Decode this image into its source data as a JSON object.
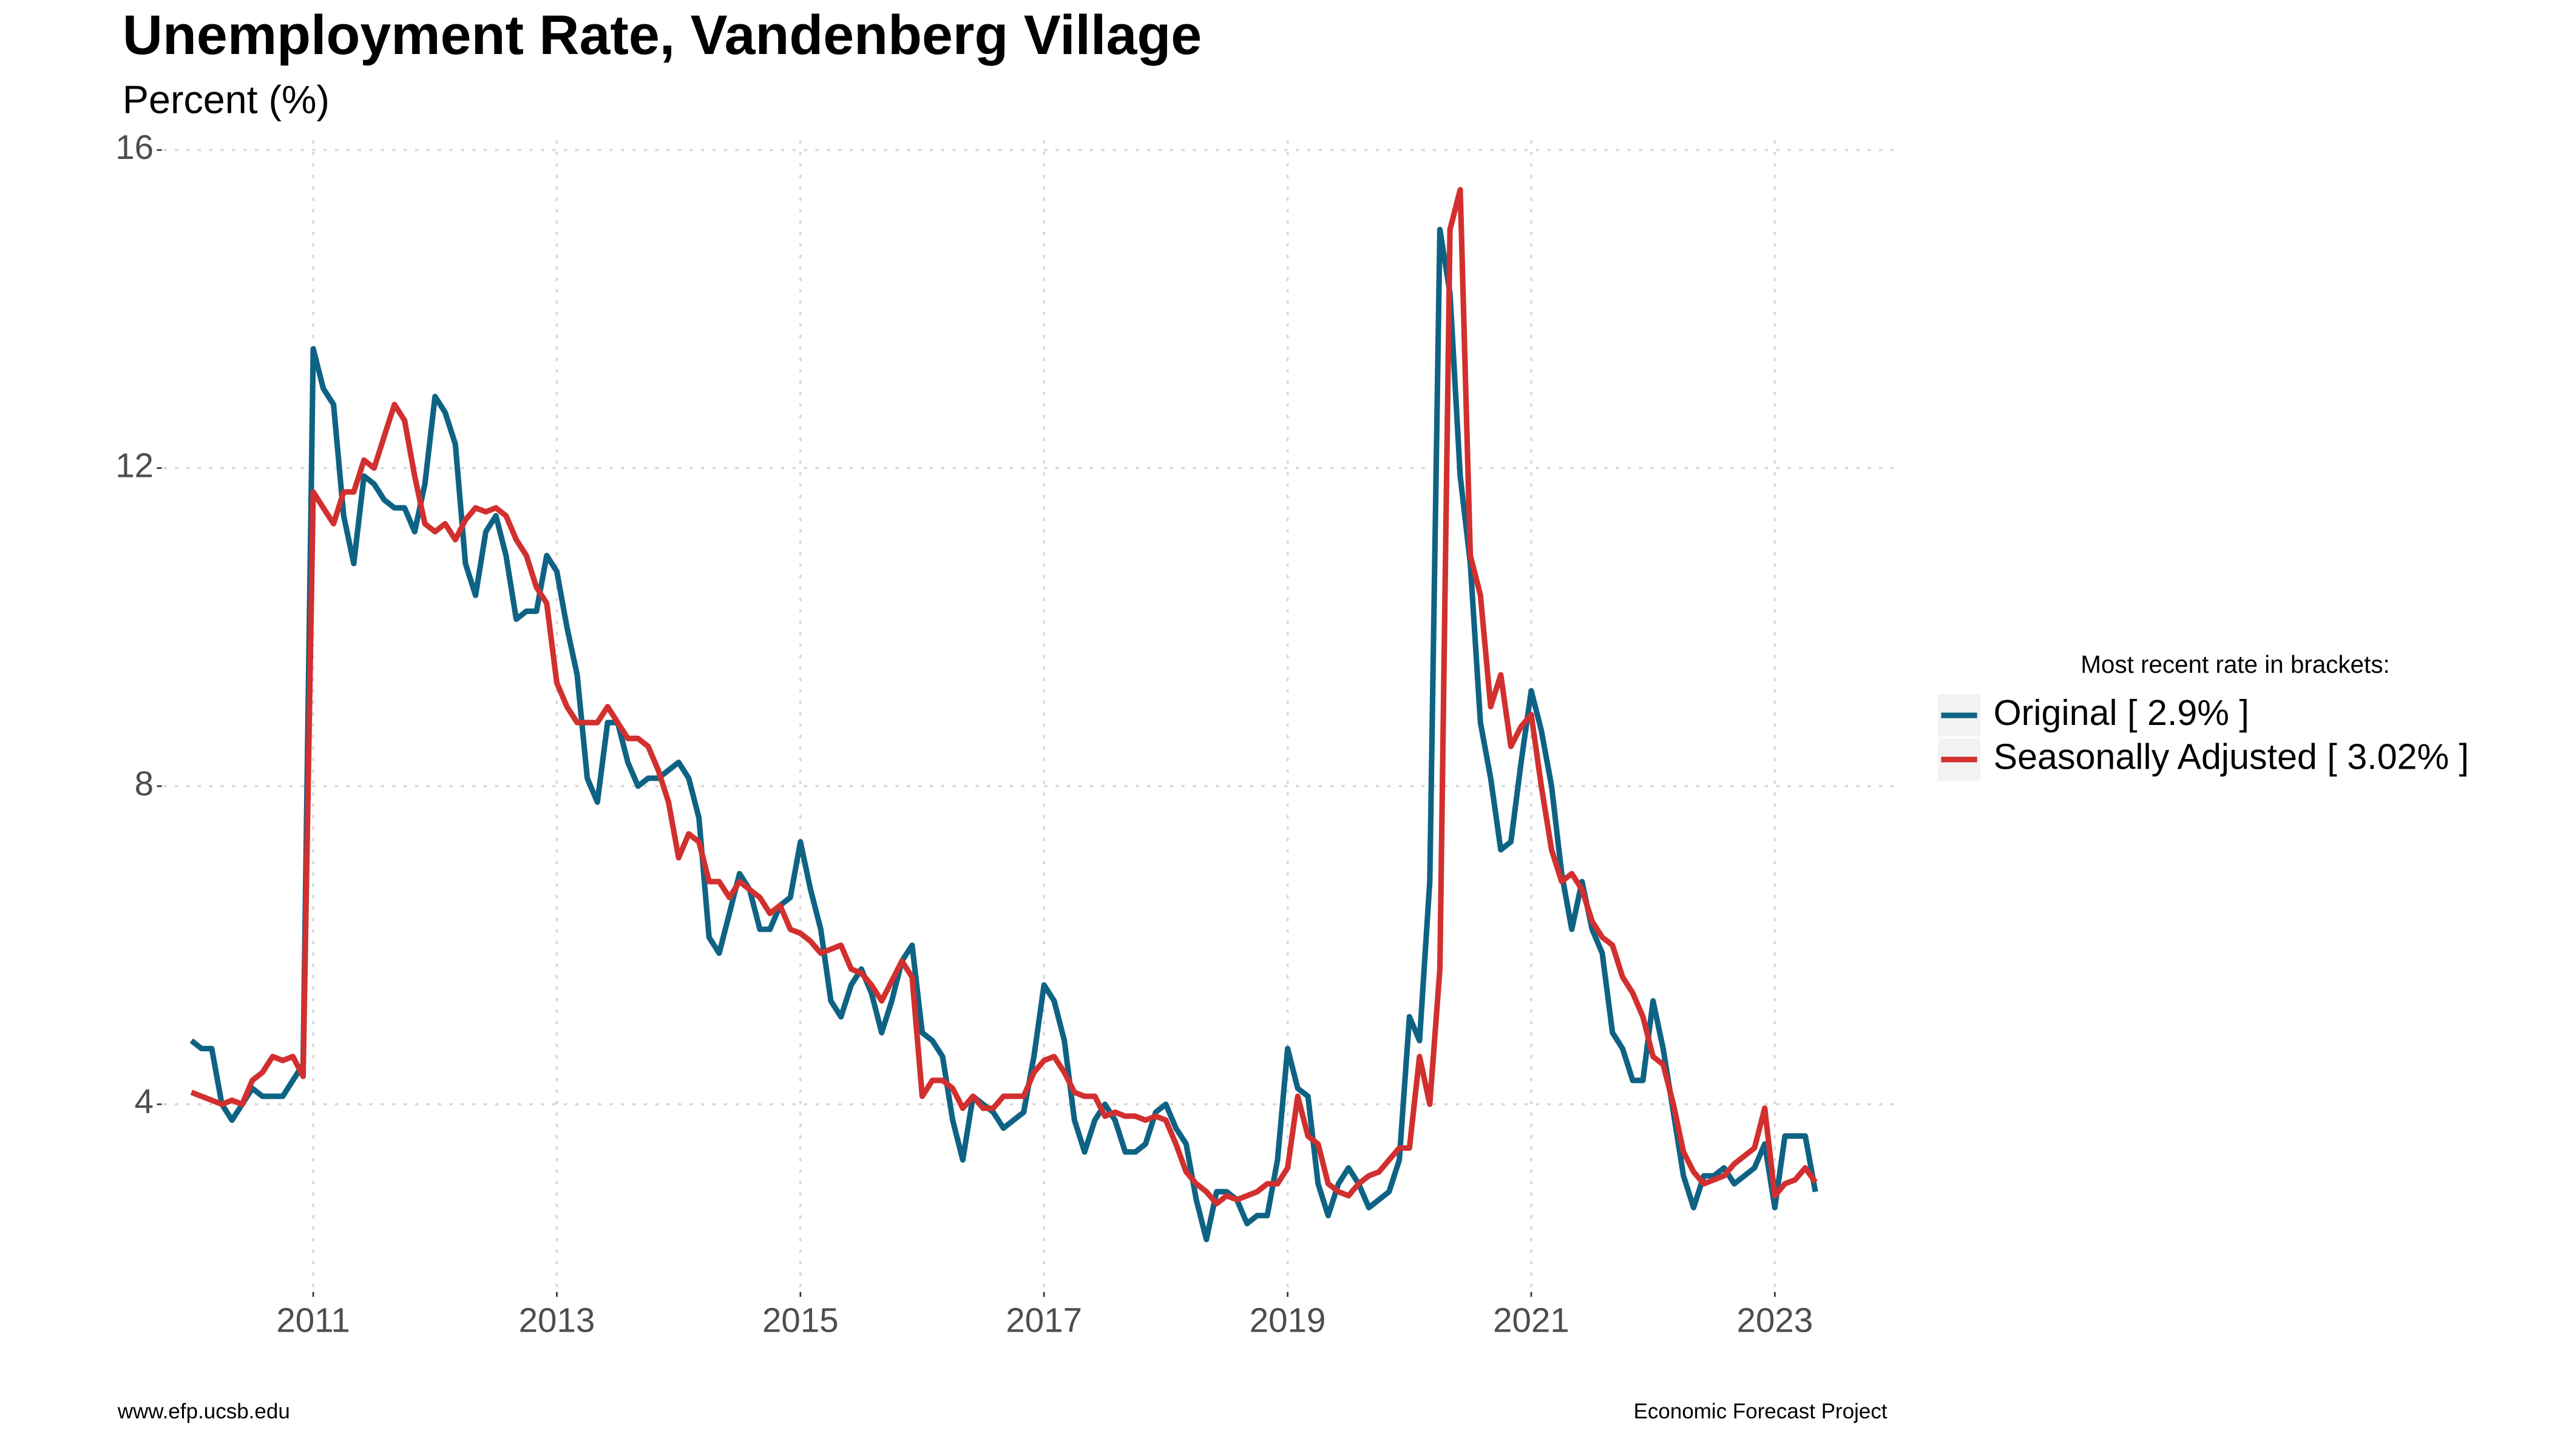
{
  "chart_data": {
    "type": "line",
    "title": "Unemployment Rate, Vandenberg Village",
    "subtitle": "Percent (%)",
    "legend_title": "Most recent rate in brackets:",
    "legend_position": "right",
    "source_left": "www.efp.ucsb.edu",
    "source_right": "Economic Forecast Project",
    "grid": true,
    "xlim": [
      2009.77,
      2023.99
    ],
    "ylim": [
      1.66,
      16.12
    ],
    "xticks": [
      2011,
      2013,
      2015,
      2017,
      2019,
      2021,
      2023
    ],
    "yticks": [
      4,
      8,
      12,
      16
    ],
    "x": [
      2010.0,
      2010.083,
      2010.167,
      2010.25,
      2010.333,
      2010.417,
      2010.5,
      2010.583,
      2010.667,
      2010.75,
      2010.833,
      2010.917,
      2011.0,
      2011.083,
      2011.167,
      2011.25,
      2011.333,
      2011.417,
      2011.5,
      2011.583,
      2011.667,
      2011.75,
      2011.833,
      2011.917,
      2012.0,
      2012.083,
      2012.167,
      2012.25,
      2012.333,
      2012.417,
      2012.5,
      2012.583,
      2012.667,
      2012.75,
      2012.833,
      2012.917,
      2013.0,
      2013.083,
      2013.167,
      2013.25,
      2013.333,
      2013.417,
      2013.5,
      2013.583,
      2013.667,
      2013.75,
      2013.833,
      2013.917,
      2014.0,
      2014.083,
      2014.167,
      2014.25,
      2014.333,
      2014.417,
      2014.5,
      2014.583,
      2014.667,
      2014.75,
      2014.833,
      2014.917,
      2015.0,
      2015.083,
      2015.167,
      2015.25,
      2015.333,
      2015.417,
      2015.5,
      2015.583,
      2015.667,
      2015.75,
      2015.833,
      2015.917,
      2016.0,
      2016.083,
      2016.167,
      2016.25,
      2016.333,
      2016.417,
      2016.5,
      2016.583,
      2016.667,
      2016.75,
      2016.833,
      2016.917,
      2017.0,
      2017.083,
      2017.167,
      2017.25,
      2017.333,
      2017.417,
      2017.5,
      2017.583,
      2017.667,
      2017.75,
      2017.833,
      2017.917,
      2018.0,
      2018.083,
      2018.167,
      2018.25,
      2018.333,
      2018.417,
      2018.5,
      2018.583,
      2018.667,
      2018.75,
      2018.833,
      2018.917,
      2019.0,
      2019.083,
      2019.167,
      2019.25,
      2019.333,
      2019.417,
      2019.5,
      2019.583,
      2019.667,
      2019.75,
      2019.833,
      2019.917,
      2020.0,
      2020.083,
      2020.167,
      2020.25,
      2020.333,
      2020.417,
      2020.5,
      2020.583,
      2020.667,
      2020.75,
      2020.833,
      2020.917,
      2021.0,
      2021.083,
      2021.167,
      2021.25,
      2021.333,
      2021.417,
      2021.5,
      2021.583,
      2021.667,
      2021.75,
      2021.833,
      2021.917,
      2022.0,
      2022.083,
      2022.167,
      2022.25,
      2022.333,
      2022.417,
      2022.5,
      2022.583,
      2022.667,
      2022.75,
      2022.833,
      2022.917,
      2023.0,
      2023.083,
      2023.167,
      2023.25,
      2023.333
    ],
    "series": [
      {
        "name": "Original [ 2.9% ]",
        "color": "#0e6384",
        "values": [
          4.8,
          4.7,
          4.7,
          4.0,
          3.8,
          4.0,
          4.2,
          4.1,
          4.1,
          4.1,
          4.3,
          4.5,
          13.5,
          13.0,
          12.8,
          11.4,
          10.8,
          11.9,
          11.8,
          11.6,
          11.5,
          11.5,
          11.2,
          11.8,
          12.9,
          12.7,
          12.3,
          10.8,
          10.4,
          11.2,
          11.4,
          10.9,
          10.1,
          10.2,
          10.2,
          10.9,
          10.7,
          10.0,
          9.4,
          8.1,
          7.8,
          8.8,
          8.8,
          8.3,
          8.0,
          8.1,
          8.1,
          8.2,
          8.3,
          8.1,
          7.6,
          6.1,
          5.9,
          6.4,
          6.9,
          6.7,
          6.2,
          6.2,
          6.5,
          6.6,
          7.3,
          6.7,
          6.2,
          5.3,
          5.1,
          5.5,
          5.7,
          5.4,
          4.9,
          5.3,
          5.8,
          6.0,
          4.9,
          4.8,
          4.6,
          3.8,
          3.3,
          4.1,
          4.0,
          3.9,
          3.7,
          3.8,
          3.9,
          4.6,
          5.5,
          5.3,
          4.8,
          3.8,
          3.4,
          3.8,
          4.0,
          3.8,
          3.4,
          3.4,
          3.5,
          3.9,
          4.0,
          3.7,
          3.5,
          2.8,
          2.3,
          2.9,
          2.9,
          2.8,
          2.5,
          2.6,
          2.6,
          3.3,
          4.7,
          4.2,
          4.1,
          3.0,
          2.6,
          3.0,
          3.2,
          3.0,
          2.7,
          2.8,
          2.9,
          3.3,
          5.1,
          4.8,
          6.8,
          15.0,
          14.2,
          11.9,
          10.8,
          8.8,
          8.1,
          7.2,
          7.3,
          8.3,
          9.2,
          8.7,
          8.0,
          6.9,
          6.2,
          6.8,
          6.2,
          5.9,
          4.9,
          4.7,
          4.3,
          4.3,
          5.3,
          4.7,
          3.9,
          3.1,
          2.7,
          3.1,
          3.1,
          3.2,
          3.0,
          3.1,
          3.2,
          3.5,
          2.7,
          3.6,
          3.6,
          3.6,
          2.9
        ]
      },
      {
        "name": "Seasonally Adjusted [ 3.02% ]",
        "color": "#d1302f",
        "values": [
          4.15,
          4.1,
          4.05,
          4.0,
          4.05,
          4.0,
          4.3,
          4.4,
          4.6,
          4.55,
          4.6,
          4.35,
          11.7,
          11.5,
          11.3,
          11.7,
          11.7,
          12.1,
          12.0,
          12.4,
          12.8,
          12.6,
          11.9,
          11.3,
          11.2,
          11.3,
          11.1,
          11.35,
          11.5,
          11.45,
          11.5,
          11.4,
          11.1,
          10.9,
          10.5,
          10.3,
          9.3,
          9.0,
          8.8,
          8.8,
          8.8,
          9.0,
          8.8,
          8.6,
          8.6,
          8.5,
          8.2,
          7.8,
          7.1,
          7.4,
          7.3,
          6.8,
          6.8,
          6.6,
          6.8,
          6.7,
          6.6,
          6.4,
          6.5,
          6.2,
          6.15,
          6.05,
          5.9,
          5.95,
          6.0,
          5.7,
          5.65,
          5.5,
          5.3,
          5.55,
          5.8,
          5.6,
          4.1,
          4.3,
          4.3,
          4.2,
          3.95,
          4.1,
          3.95,
          3.95,
          4.1,
          4.1,
          4.1,
          4.4,
          4.55,
          4.6,
          4.4,
          4.15,
          4.1,
          4.1,
          3.85,
          3.9,
          3.85,
          3.85,
          3.8,
          3.85,
          3.8,
          3.5,
          3.15,
          3.0,
          2.9,
          2.75,
          2.85,
          2.8,
          2.85,
          2.9,
          3.0,
          3.0,
          3.2,
          4.1,
          3.6,
          3.5,
          3.0,
          2.9,
          2.85,
          3.0,
          3.1,
          3.15,
          3.3,
          3.45,
          3.45,
          4.6,
          4.0,
          5.7,
          15.0,
          15.5,
          10.9,
          10.4,
          9.0,
          9.4,
          8.5,
          8.75,
          8.9,
          8.0,
          7.2,
          6.8,
          6.9,
          6.7,
          6.3,
          6.1,
          6.0,
          5.6,
          5.4,
          5.1,
          4.6,
          4.5,
          4.0,
          3.4,
          3.15,
          3.0,
          3.05,
          3.1,
          3.25,
          3.35,
          3.45,
          3.95,
          2.85,
          3.0,
          3.05,
          3.2,
          3.02
        ]
      }
    ]
  }
}
